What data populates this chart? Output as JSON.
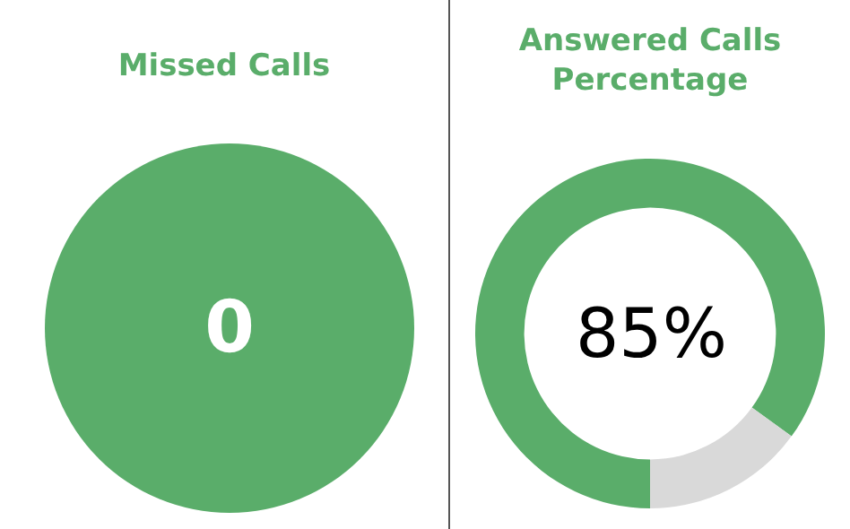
{
  "chart_data": [
    {
      "type": "other",
      "title": "Missed Calls",
      "annotations": [
        "0"
      ]
    },
    {
      "type": "donut",
      "title": "Answered Calls Percentage",
      "categories": [
        null,
        null
      ],
      "values": [
        85,
        15
      ],
      "colors": [
        "#5aad6a",
        "#d9d9d9"
      ],
      "annotations": [
        "85%"
      ]
    }
  ]
}
